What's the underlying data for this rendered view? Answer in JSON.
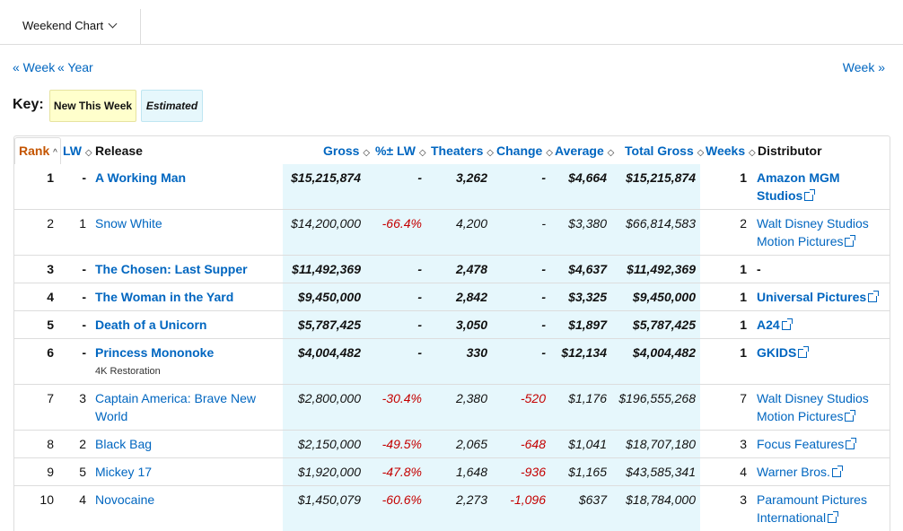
{
  "dropdown": {
    "label": "Weekend Chart"
  },
  "nav": {
    "prev_week": "« Week",
    "prev_year": "« Year",
    "next_week": "Week »"
  },
  "key": {
    "label": "Key:",
    "new": "New This Week",
    "estimated": "Estimated"
  },
  "headers": {
    "rank": "Rank",
    "lw": "LW",
    "release": "Release",
    "gross": "Gross",
    "pct_lw": "%± LW",
    "theaters": "Theaters",
    "change": "Change",
    "average": "Average",
    "total_gross": "Total Gross",
    "weeks": "Weeks",
    "distributor": "Distributor"
  },
  "colors": {
    "link": "#0066c0",
    "negative": "#c40000",
    "sorted": "#c45500",
    "new_bg": "#ffffcc",
    "estimated_bg": "#e6f7fc"
  },
  "rows": [
    {
      "rank": "1",
      "lw": "-",
      "release": "A Working Man",
      "sub": "",
      "gross": "$15,215,874",
      "pct": "-",
      "theaters": "3,262",
      "change": "-",
      "average": "$4,664",
      "total": "$15,215,874",
      "weeks": "1",
      "dist1": "Amazon MGM",
      "dist2": "Studios",
      "new": true
    },
    {
      "rank": "2",
      "lw": "1",
      "release": "Snow White",
      "sub": "",
      "gross": "$14,200,000",
      "pct": "-66.4%",
      "theaters": "4,200",
      "change": "-",
      "average": "$3,380",
      "total": "$66,814,583",
      "weeks": "2",
      "dist1": "Walt Disney Studios",
      "dist2": "Motion Pictures",
      "new": false
    },
    {
      "rank": "3",
      "lw": "-",
      "release": "The Chosen: Last Supper",
      "sub": "",
      "gross": "$11,492,369",
      "pct": "-",
      "theaters": "2,478",
      "change": "-",
      "average": "$4,637",
      "total": "$11,492,369",
      "weeks": "1",
      "dist1": "-",
      "dist2": "",
      "new": true
    },
    {
      "rank": "4",
      "lw": "-",
      "release": "The Woman in the Yard",
      "sub": "",
      "gross": "$9,450,000",
      "pct": "-",
      "theaters": "2,842",
      "change": "-",
      "average": "$3,325",
      "total": "$9,450,000",
      "weeks": "1",
      "dist1": "Universal Pictures",
      "dist2": "",
      "new": true
    },
    {
      "rank": "5",
      "lw": "-",
      "release": "Death of a Unicorn",
      "sub": "",
      "gross": "$5,787,425",
      "pct": "-",
      "theaters": "3,050",
      "change": "-",
      "average": "$1,897",
      "total": "$5,787,425",
      "weeks": "1",
      "dist1": "A24",
      "dist2": "",
      "new": true
    },
    {
      "rank": "6",
      "lw": "-",
      "release": "Princess Mononoke",
      "sub": "4K Restoration",
      "gross": "$4,004,482",
      "pct": "-",
      "theaters": "330",
      "change": "-",
      "average": "$12,134",
      "total": "$4,004,482",
      "weeks": "1",
      "dist1": "GKIDS",
      "dist2": "",
      "new": true
    },
    {
      "rank": "7",
      "lw": "3",
      "release": "Captain America: Brave New",
      "release2": "World",
      "sub": "",
      "gross": "$2,800,000",
      "pct": "-30.4%",
      "theaters": "2,380",
      "change": "-520",
      "average": "$1,176",
      "total": "$196,555,268",
      "weeks": "7",
      "dist1": "Walt Disney Studios",
      "dist2": "Motion Pictures",
      "new": false
    },
    {
      "rank": "8",
      "lw": "2",
      "release": "Black Bag",
      "sub": "",
      "gross": "$2,150,000",
      "pct": "-49.5%",
      "theaters": "2,065",
      "change": "-648",
      "average": "$1,041",
      "total": "$18,707,180",
      "weeks": "3",
      "dist1": "Focus Features",
      "dist2": "",
      "new": false
    },
    {
      "rank": "9",
      "lw": "5",
      "release": "Mickey 17",
      "sub": "",
      "gross": "$1,920,000",
      "pct": "-47.8%",
      "theaters": "1,648",
      "change": "-936",
      "average": "$1,165",
      "total": "$43,585,341",
      "weeks": "4",
      "dist1": "Warner Bros.",
      "dist2": "",
      "new": false
    },
    {
      "rank": "10",
      "lw": "4",
      "release": "Novocaine",
      "sub": "",
      "gross": "$1,450,079",
      "pct": "-60.6%",
      "theaters": "2,273",
      "change": "-1,096",
      "average": "$637",
      "total": "$18,784,000",
      "weeks": "3",
      "dist1": "Paramount Pictures",
      "dist2": "International",
      "new": false
    }
  ]
}
